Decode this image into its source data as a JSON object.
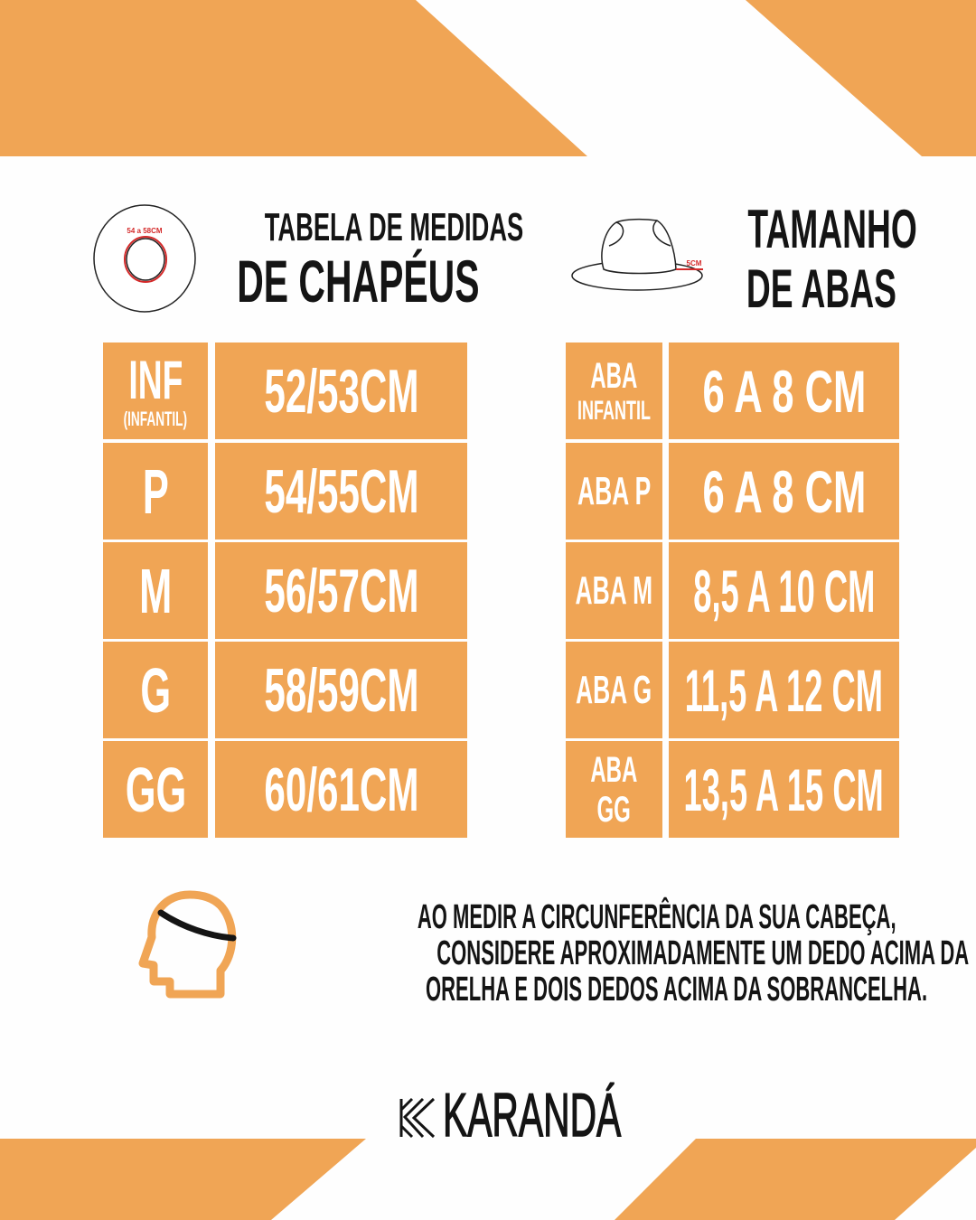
{
  "colors": {
    "accent": "#f0a555",
    "text": "#141414",
    "measure_red": "#d42a2a"
  },
  "header_left": {
    "icon": "hat-top-view-icon",
    "icon_label": "54 a 58CM",
    "title_line1": "TABELA DE MEDIDAS",
    "title_line2": "DE CHAPÉUS"
  },
  "header_right": {
    "icon": "hat-side-view-icon",
    "icon_label": "5CM",
    "title_line1": "TAMANHO",
    "title_line2": "DE ABAS"
  },
  "sizes": [
    {
      "size": "INF",
      "sub": "(INFANTIL)",
      "measure": "52/53CM"
    },
    {
      "size": "P",
      "sub": "",
      "measure": "54/55CM"
    },
    {
      "size": "M",
      "sub": "",
      "measure": "56/57CM"
    },
    {
      "size": "G",
      "sub": "",
      "measure": "58/59CM"
    },
    {
      "size": "GG",
      "sub": "",
      "measure": "60/61CM"
    }
  ],
  "brims": [
    {
      "line1": "ABA",
      "line2": "INFANTIL",
      "measure": "6 A 8 CM"
    },
    {
      "line1": "ABA P",
      "line2": "",
      "measure": "6 A 8 CM"
    },
    {
      "line1": "ABA M",
      "line2": "",
      "measure": "8,5 A 10 CM"
    },
    {
      "line1": "ABA G",
      "line2": "",
      "measure": "11,5 A 12 CM"
    },
    {
      "line1": "ABA",
      "line2": "GG",
      "measure": "13,5 A 15 CM"
    }
  ],
  "note": {
    "icon": "head-measure-icon",
    "lines": [
      "AO MEDIR A CIRCUNFERÊNCIA DA SUA CABEÇA,",
      "CONSIDERE APROXIMADAMENTE UM DEDO ACIMA DA",
      "ORELHA E DOIS DEDOS ACIMA DA SOBRANCELHA."
    ]
  },
  "brand": {
    "name": "KARANDÁ",
    "icon": "karanda-k-logo-icon"
  }
}
